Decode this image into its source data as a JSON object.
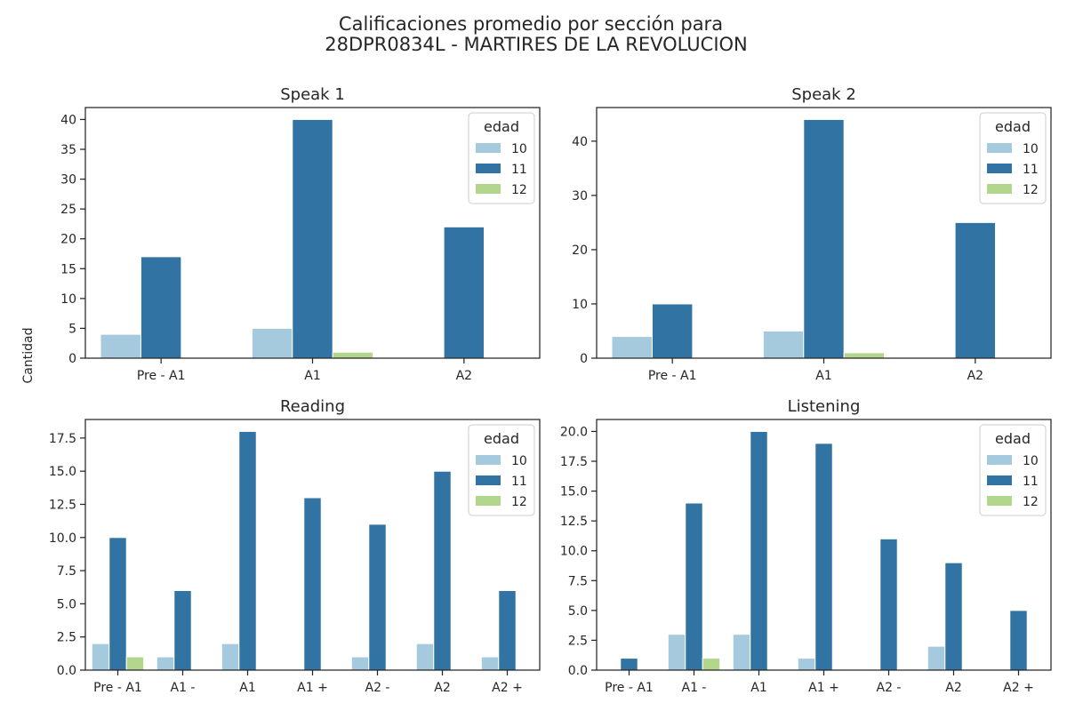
{
  "figure": {
    "title_line1": "Calificaciones promedio por sección para",
    "title_line2": "28DPR0834L - MARTIRES DE LA REVOLUCION",
    "ylabel": "Cantidad"
  },
  "colors": {
    "10": "#a6cadd",
    "11": "#3174a3",
    "12": "#b2d68b"
  },
  "chart_data": [
    {
      "type": "bar",
      "title": "Speak 1",
      "categories": [
        "Pre - A1",
        "A1",
        "A2"
      ],
      "legend_title": "edad",
      "legend_position": "top-right",
      "ylim": [
        0,
        42
      ],
      "yticks": [
        0,
        5,
        10,
        15,
        20,
        25,
        30,
        35,
        40
      ],
      "series": [
        {
          "name": "10",
          "values": [
            4,
            5,
            0
          ]
        },
        {
          "name": "11",
          "values": [
            17,
            40,
            22
          ]
        },
        {
          "name": "12",
          "values": [
            0,
            1,
            0
          ]
        }
      ]
    },
    {
      "type": "bar",
      "title": "Speak 2",
      "categories": [
        "Pre - A1",
        "A1",
        "A2"
      ],
      "legend_title": "edad",
      "legend_position": "top-right",
      "ylim": [
        0,
        46.2
      ],
      "yticks": [
        0,
        10,
        20,
        30,
        40
      ],
      "series": [
        {
          "name": "10",
          "values": [
            4,
            5,
            0
          ]
        },
        {
          "name": "11",
          "values": [
            10,
            44,
            25
          ]
        },
        {
          "name": "12",
          "values": [
            0,
            1,
            0
          ]
        }
      ]
    },
    {
      "type": "bar",
      "title": "Reading",
      "categories": [
        "Pre - A1",
        "A1 -",
        "A1",
        "A1 +",
        "A2 -",
        "A2",
        "A2 +"
      ],
      "legend_title": "edad",
      "legend_position": "top-right",
      "ylim": [
        0,
        18.9
      ],
      "yticks": [
        0,
        2.5,
        5,
        7.5,
        10,
        12.5,
        15,
        17.5
      ],
      "series": [
        {
          "name": "10",
          "values": [
            2,
            1,
            2,
            0,
            1,
            2,
            1
          ]
        },
        {
          "name": "11",
          "values": [
            10,
            6,
            18,
            13,
            11,
            15,
            6
          ]
        },
        {
          "name": "12",
          "values": [
            1,
            0,
            0,
            0,
            0,
            0,
            0
          ]
        }
      ]
    },
    {
      "type": "bar",
      "title": "Listening",
      "categories": [
        "Pre - A1",
        "A1 -",
        "A1",
        "A1 +",
        "A2 -",
        "A2",
        "A2 +"
      ],
      "legend_title": "edad",
      "legend_position": "top-right",
      "ylim": [
        0,
        21
      ],
      "yticks": [
        0,
        2.5,
        5,
        7.5,
        10,
        12.5,
        15,
        17.5,
        20
      ],
      "series": [
        {
          "name": "10",
          "values": [
            0,
            3,
            3,
            1,
            0,
            2,
            0
          ]
        },
        {
          "name": "11",
          "values": [
            1,
            14,
            20,
            19,
            11,
            9,
            5
          ]
        },
        {
          "name": "12",
          "values": [
            0,
            1,
            0,
            0,
            0,
            0,
            0
          ]
        }
      ]
    }
  ]
}
